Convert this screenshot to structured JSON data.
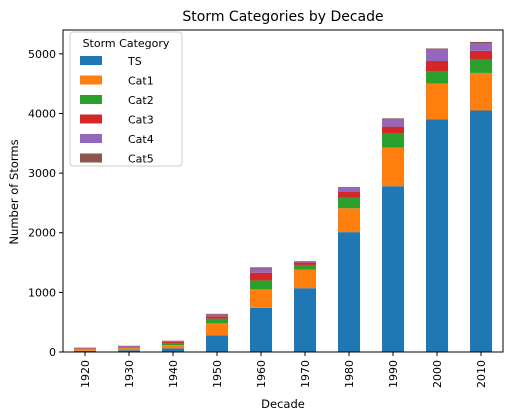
{
  "chart_data": {
    "type": "bar",
    "stacked": true,
    "title": "Storm Categories by Decade",
    "xlabel": "Decade",
    "ylabel": "Number of Storms",
    "categories": [
      "1920",
      "1930",
      "1940",
      "1950",
      "1960",
      "1970",
      "1980",
      "1990",
      "2000",
      "2010"
    ],
    "ylim": [
      0,
      5400
    ],
    "yticks": [
      0,
      1000,
      2000,
      3000,
      4000,
      5000
    ],
    "legend": {
      "title": "Storm Category",
      "placement": "top-left"
    },
    "grid": false,
    "series": [
      {
        "name": "TS",
        "color": "#1f77b4",
        "values": [
          20,
          30,
          60,
          280,
          740,
          1070,
          2010,
          2780,
          3900,
          4050
        ]
      },
      {
        "name": "Cat1",
        "color": "#ff7f0e",
        "values": [
          25,
          35,
          55,
          200,
          310,
          310,
          400,
          650,
          600,
          630
        ]
      },
      {
        "name": "Cat2",
        "color": "#2ca02c",
        "values": [
          10,
          15,
          30,
          80,
          150,
          80,
          180,
          230,
          200,
          220
        ]
      },
      {
        "name": "Cat3",
        "color": "#d62728",
        "values": [
          10,
          10,
          25,
          40,
          130,
          40,
          100,
          120,
          180,
          150
        ]
      },
      {
        "name": "Cat4",
        "color": "#9467bd",
        "values": [
          5,
          10,
          15,
          30,
          70,
          20,
          60,
          130,
          190,
          120
        ]
      },
      {
        "name": "Cat5",
        "color": "#8c564b",
        "values": [
          5,
          5,
          5,
          10,
          20,
          5,
          15,
          10,
          20,
          30
        ]
      }
    ]
  }
}
